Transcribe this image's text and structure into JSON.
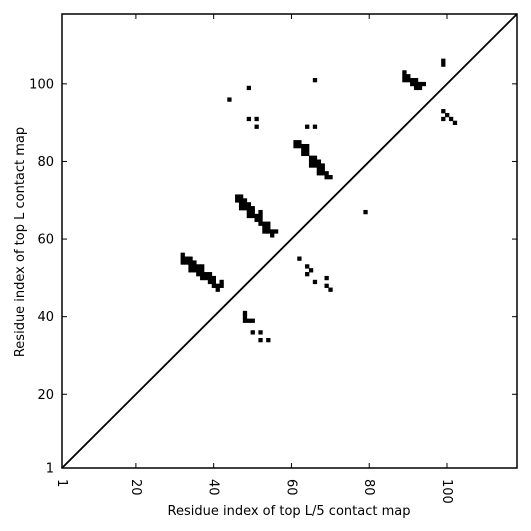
{
  "chart_data": {
    "type": "scatter",
    "title": "",
    "xlabel": "Residue index of top L/5 contact map",
    "ylabel": "Residue index of top L contact map",
    "xlim": [
      1,
      118
    ],
    "ylim": [
      1,
      118
    ],
    "xticks": [
      1,
      20,
      40,
      60,
      80,
      100
    ],
    "yticks": [
      1,
      20,
      40,
      60,
      80,
      100
    ],
    "x_tick_rotation": "rotated 90 degrees clockwise",
    "grid": false,
    "legend": "none",
    "marker": "square",
    "marker_color": "#000000",
    "diagonal_line": {
      "from": [
        1,
        1
      ],
      "to": [
        118,
        118
      ]
    },
    "points": [
      [
        32,
        54
      ],
      [
        32,
        55
      ],
      [
        32,
        56
      ],
      [
        33,
        54
      ],
      [
        33,
        55
      ],
      [
        34,
        52
      ],
      [
        34,
        53
      ],
      [
        34,
        54
      ],
      [
        34,
        55
      ],
      [
        35,
        52
      ],
      [
        35,
        53
      ],
      [
        35,
        54
      ],
      [
        36,
        51
      ],
      [
        36,
        52
      ],
      [
        36,
        53
      ],
      [
        37,
        50
      ],
      [
        37,
        51
      ],
      [
        37,
        52
      ],
      [
        37,
        53
      ],
      [
        38,
        50
      ],
      [
        38,
        51
      ],
      [
        39,
        49
      ],
      [
        39,
        50
      ],
      [
        39,
        51
      ],
      [
        40,
        48
      ],
      [
        40,
        49
      ],
      [
        40,
        50
      ],
      [
        41,
        47
      ],
      [
        41,
        48
      ],
      [
        42,
        48
      ],
      [
        42,
        49
      ],
      [
        44,
        96
      ],
      [
        49,
        99
      ],
      [
        49,
        91
      ],
      [
        51,
        91
      ],
      [
        51,
        89
      ],
      [
        46,
        70
      ],
      [
        46,
        71
      ],
      [
        47,
        68
      ],
      [
        47,
        69
      ],
      [
        47,
        70
      ],
      [
        47,
        71
      ],
      [
        48,
        68
      ],
      [
        48,
        69
      ],
      [
        48,
        70
      ],
      [
        49,
        66
      ],
      [
        49,
        67
      ],
      [
        49,
        68
      ],
      [
        49,
        69
      ],
      [
        50,
        66
      ],
      [
        50,
        67
      ],
      [
        50,
        68
      ],
      [
        51,
        65
      ],
      [
        51,
        66
      ],
      [
        52,
        64
      ],
      [
        52,
        65
      ],
      [
        52,
        66
      ],
      [
        52,
        67
      ],
      [
        53,
        62
      ],
      [
        53,
        63
      ],
      [
        53,
        64
      ],
      [
        54,
        62
      ],
      [
        54,
        63
      ],
      [
        54,
        64
      ],
      [
        55,
        61
      ],
      [
        55,
        62
      ],
      [
        56,
        62
      ],
      [
        48,
        39
      ],
      [
        48,
        40
      ],
      [
        48,
        41
      ],
      [
        49,
        39
      ],
      [
        50,
        39
      ],
      [
        50,
        36
      ],
      [
        52,
        36
      ],
      [
        52,
        34
      ],
      [
        54,
        34
      ],
      [
        62,
        55
      ],
      [
        64,
        53
      ],
      [
        64,
        51
      ],
      [
        65,
        52
      ],
      [
        66,
        49
      ],
      [
        69,
        50
      ],
      [
        69,
        48
      ],
      [
        70,
        47
      ],
      [
        79,
        67
      ],
      [
        61,
        84
      ],
      [
        61,
        85
      ],
      [
        62,
        84
      ],
      [
        62,
        85
      ],
      [
        63,
        82
      ],
      [
        63,
        83
      ],
      [
        63,
        84
      ],
      [
        64,
        82
      ],
      [
        64,
        83
      ],
      [
        64,
        84
      ],
      [
        65,
        79
      ],
      [
        65,
        80
      ],
      [
        65,
        81
      ],
      [
        66,
        79
      ],
      [
        66,
        80
      ],
      [
        66,
        81
      ],
      [
        67,
        77
      ],
      [
        67,
        78
      ],
      [
        67,
        79
      ],
      [
        67,
        80
      ],
      [
        68,
        77
      ],
      [
        68,
        78
      ],
      [
        68,
        79
      ],
      [
        69,
        76
      ],
      [
        69,
        77
      ],
      [
        70,
        76
      ],
      [
        64,
        89
      ],
      [
        66,
        89
      ],
      [
        66,
        101
      ],
      [
        89,
        101
      ],
      [
        89,
        102
      ],
      [
        89,
        103
      ],
      [
        90,
        101
      ],
      [
        90,
        102
      ],
      [
        91,
        100
      ],
      [
        91,
        101
      ],
      [
        92,
        99
      ],
      [
        92,
        100
      ],
      [
        92,
        101
      ],
      [
        93,
        99
      ],
      [
        93,
        100
      ],
      [
        94,
        100
      ],
      [
        99,
        105
      ],
      [
        99,
        106
      ],
      [
        99,
        91
      ],
      [
        99,
        93
      ],
      [
        100,
        92
      ],
      [
        101,
        91
      ],
      [
        102,
        90
      ]
    ]
  }
}
